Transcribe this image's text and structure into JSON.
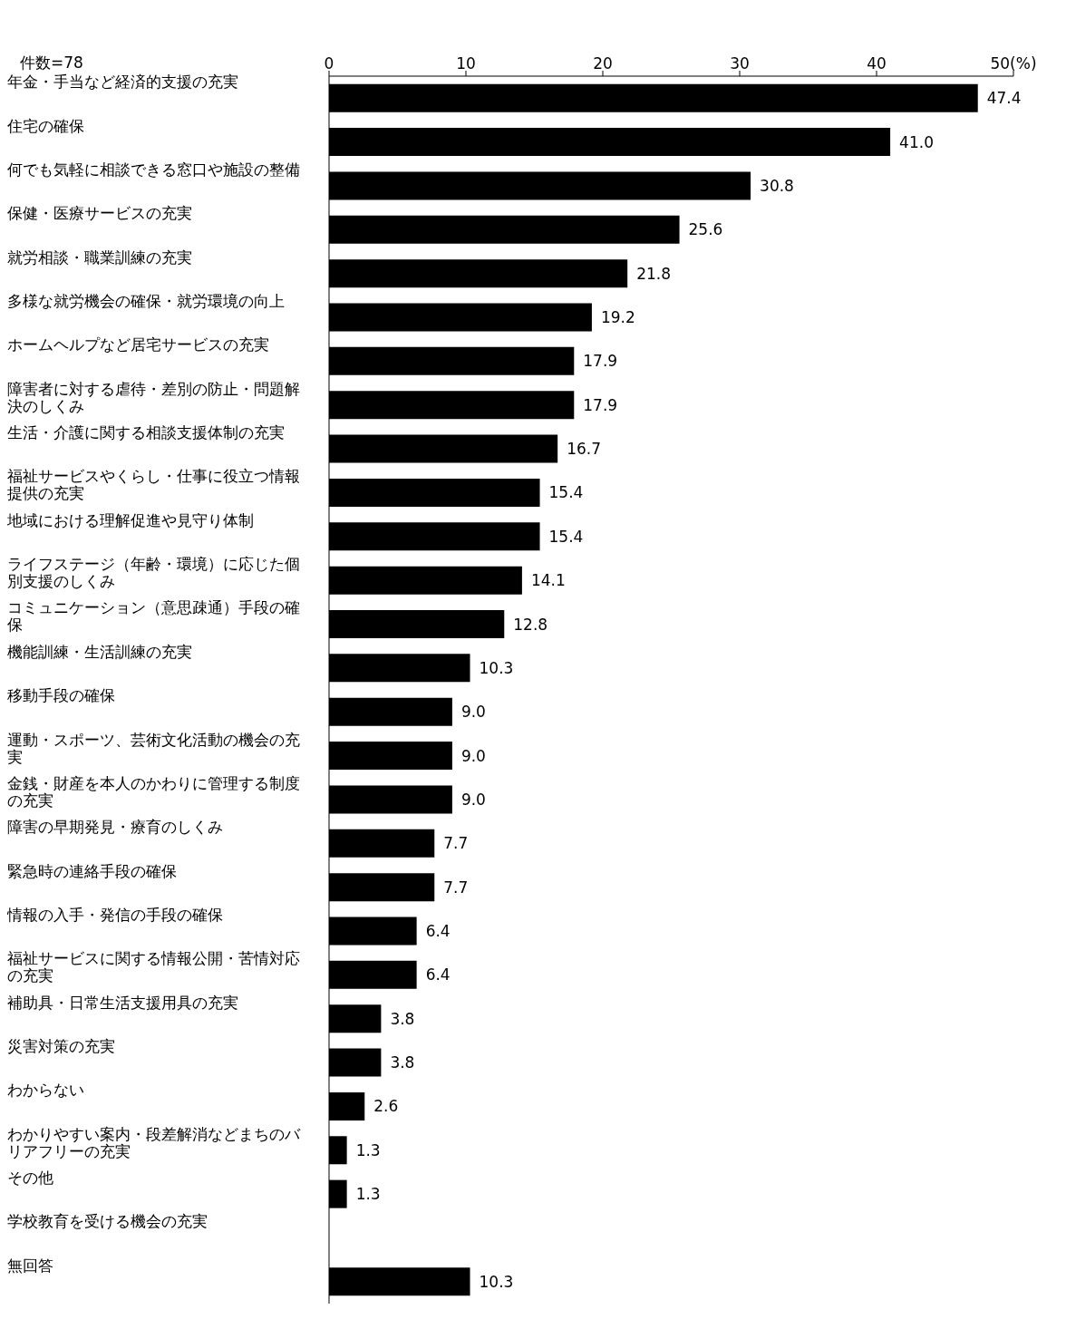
{
  "chart_data": {
    "type": "bar",
    "orientation": "horizontal",
    "categories": [
      "年金・手当など経済的支援の充実",
      "住宅の確保",
      "何でも気軽に相談できる窓口や施設の整備",
      "保健・医療サービスの充実",
      "就労相談・職業訓練の充実",
      "多様な就労機会の確保・就労環境の向上",
      "ホームヘルプなど居宅サービスの充実",
      "障害者に対する虐待・差別の防止・問題解決のしくみ",
      "生活・介護に関する相談支援体制の充実",
      "福祉サービスやくらし・仕事に役立つ情報提供の充実",
      "地域における理解促進や見守り体制",
      "ライフステージ（年齢・環境）に応じた個別支援のしくみ",
      "コミュニケーション（意思疎通）手段の確保",
      "機能訓練・生活訓練の充実",
      "移動手段の確保",
      "運動・スポーツ、芸術文化活動の機会の充実",
      "金銭・財産を本人のかわりに管理する制度の充実",
      "障害の早期発見・療育のしくみ",
      "緊急時の連絡手段の確保",
      "情報の入手・発信の手段の確保",
      "福祉サービスに関する情報公開・苦情対応の充実",
      "補助具・日常生活支援用具の充実",
      "災害対策の充実",
      "わからない",
      "わかりやすい案内・段差解消などまちのバリアフリーの充実",
      "その他",
      "学校教育を受ける機会の充実",
      "無回答"
    ],
    "values": [
      47.4,
      41.0,
      30.8,
      25.6,
      21.8,
      19.2,
      17.9,
      17.9,
      16.7,
      15.4,
      15.4,
      14.1,
      12.8,
      10.3,
      9.0,
      9.0,
      9.0,
      7.7,
      7.7,
      6.4,
      6.4,
      3.8,
      3.8,
      2.6,
      1.3,
      1.3,
      0,
      10.3
    ],
    "value_labels": [
      "47.4",
      "41.0",
      "30.8",
      "25.6",
      "21.8",
      "19.2",
      "17.9",
      "17.9",
      "16.7",
      "15.4",
      "15.4",
      "14.1",
      "12.8",
      "10.3",
      "9.0",
      "9.0",
      "9.0",
      "7.7",
      "7.7",
      "6.4",
      "6.4",
      "3.8",
      "3.8",
      "2.6",
      "1.3",
      "1.3",
      null,
      "10.3"
    ],
    "color": "#000000",
    "xlim": [
      0,
      50
    ],
    "xticks": [
      0,
      10,
      20,
      30,
      40,
      {
        "value": 50,
        "label": "50(%)"
      }
    ],
    "annotations": [
      "件数=78"
    ],
    "grid": false,
    "legend": false
  }
}
